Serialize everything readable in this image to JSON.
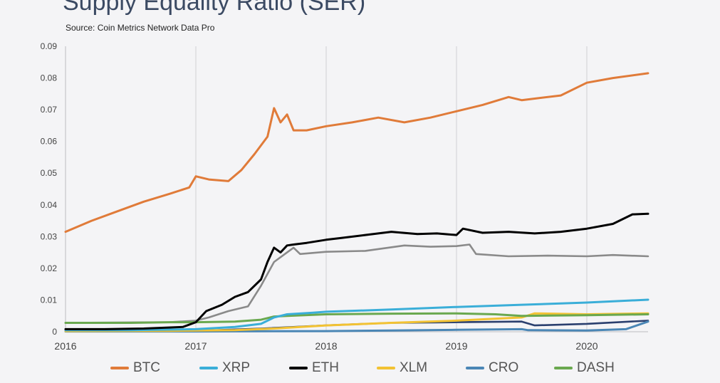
{
  "title": "Supply Equality Ratio (SER)",
  "source": "Source: Coin Metrics Network Data Pro",
  "chart_data": {
    "type": "line",
    "title": "Supply Equality Ratio (SER)",
    "xlabel": "",
    "ylabel": "",
    "xlim": [
      2016.0,
      2020.47
    ],
    "ylim": [
      0,
      0.09
    ],
    "x_ticks": [
      "2016",
      "2017",
      "2018",
      "2019",
      "2020"
    ],
    "y_ticks": [
      "0",
      "0.01",
      "0.02",
      "0.03",
      "0.04",
      "0.05",
      "0.06",
      "0.07",
      "0.08",
      "0.09"
    ],
    "grid": "vertical",
    "legend_position": "bottom",
    "series": [
      {
        "name": "BTC",
        "color": "#e07b39",
        "x": [
          2016.0,
          2016.2,
          2016.4,
          2016.6,
          2016.8,
          2016.95,
          2017.0,
          2017.1,
          2017.25,
          2017.35,
          2017.45,
          2017.55,
          2017.6,
          2017.65,
          2017.7,
          2017.75,
          2017.85,
          2018.0,
          2018.2,
          2018.4,
          2018.6,
          2018.8,
          2019.0,
          2019.2,
          2019.4,
          2019.5,
          2019.6,
          2019.8,
          2020.0,
          2020.2,
          2020.47
        ],
        "y": [
          0.0315,
          0.035,
          0.038,
          0.041,
          0.0435,
          0.0455,
          0.049,
          0.048,
          0.0475,
          0.051,
          0.056,
          0.0615,
          0.0705,
          0.066,
          0.0685,
          0.0635,
          0.0635,
          0.0648,
          0.066,
          0.0675,
          0.066,
          0.0675,
          0.0695,
          0.0715,
          0.074,
          0.073,
          0.0735,
          0.0745,
          0.0785,
          0.08,
          0.0815
        ]
      },
      {
        "name": "XRP",
        "color": "#3aaed8",
        "x": [
          2016.0,
          2016.5,
          2017.0,
          2017.3,
          2017.5,
          2017.6,
          2017.7,
          2017.9,
          2018.0,
          2018.5,
          2019.0,
          2019.5,
          2020.0,
          2020.47
        ],
        "y": [
          0.0005,
          0.0005,
          0.0008,
          0.0015,
          0.0025,
          0.0045,
          0.0055,
          0.006,
          0.0063,
          0.007,
          0.0078,
          0.0085,
          0.0092,
          0.0101
        ]
      },
      {
        "name": "ETH",
        "color": "#000000",
        "x": [
          2016.0,
          2016.3,
          2016.6,
          2016.9,
          2017.0,
          2017.08,
          2017.2,
          2017.3,
          2017.4,
          2017.5,
          2017.55,
          2017.6,
          2017.65,
          2017.7,
          2017.75,
          2017.85,
          2018.0,
          2018.1,
          2018.3,
          2018.5,
          2018.7,
          2018.85,
          2019.0,
          2019.05,
          2019.2,
          2019.4,
          2019.6,
          2019.8,
          2020.0,
          2020.2,
          2020.35,
          2020.47
        ],
        "y": [
          0.0008,
          0.0008,
          0.001,
          0.0015,
          0.003,
          0.0065,
          0.0085,
          0.011,
          0.0125,
          0.0165,
          0.022,
          0.0265,
          0.025,
          0.0272,
          0.0275,
          0.028,
          0.029,
          0.0295,
          0.0305,
          0.0315,
          0.0308,
          0.031,
          0.0305,
          0.0325,
          0.0312,
          0.0315,
          0.031,
          0.0315,
          0.0325,
          0.034,
          0.037,
          0.0372
        ]
      },
      {
        "name": "XLM",
        "color": "#f2c233",
        "x": [
          2016.0,
          2016.8,
          2017.3,
          2017.6,
          2018.0,
          2018.5,
          2019.0,
          2019.5,
          2019.6,
          2020.0,
          2020.47
        ],
        "y": [
          0.0002,
          0.0003,
          0.0005,
          0.001,
          0.002,
          0.0028,
          0.0035,
          0.0045,
          0.0058,
          0.0055,
          0.0058
        ]
      },
      {
        "name": "CRO",
        "color": "#4a86b5",
        "x": [
          2016.0,
          2017.0,
          2018.0,
          2018.5,
          2019.0,
          2019.5,
          2019.55,
          2020.0,
          2020.3,
          2020.47
        ],
        "y": [
          0.0001,
          0.0001,
          0.0002,
          0.0004,
          0.0006,
          0.0008,
          0.0005,
          0.0004,
          0.0008,
          0.0032
        ]
      },
      {
        "name": "DASH",
        "color": "#6aa84f",
        "x": [
          2016.0,
          2016.5,
          2016.8,
          2017.0,
          2017.3,
          2017.5,
          2017.6,
          2017.7,
          2018.0,
          2018.5,
          2019.0,
          2019.3,
          2019.5,
          2020.0,
          2020.47
        ],
        "y": [
          0.0028,
          0.0028,
          0.003,
          0.003,
          0.0032,
          0.0038,
          0.0048,
          0.005,
          0.0055,
          0.0057,
          0.0058,
          0.0055,
          0.005,
          0.0052,
          0.0055
        ]
      }
    ],
    "unlabeled_series": [
      {
        "color": "#8a8a8a",
        "x": [
          2016.0,
          2016.8,
          2017.0,
          2017.1,
          2017.25,
          2017.4,
          2017.5,
          2017.6,
          2017.7,
          2017.75,
          2017.8,
          2018.0,
          2018.3,
          2018.6,
          2018.8,
          2019.0,
          2019.1,
          2019.15,
          2019.4,
          2019.7,
          2020.0,
          2020.2,
          2020.47
        ],
        "y": [
          0.0028,
          0.003,
          0.0035,
          0.0045,
          0.0065,
          0.008,
          0.0145,
          0.022,
          0.025,
          0.0265,
          0.0245,
          0.0252,
          0.0255,
          0.0272,
          0.0268,
          0.027,
          0.0275,
          0.0245,
          0.0238,
          0.024,
          0.0238,
          0.0242,
          0.0238
        ]
      },
      {
        "color": "#2a3f6e",
        "x": [
          2016.0,
          2017.0,
          2017.5,
          2018.0,
          2018.5,
          2019.0,
          2019.5,
          2019.6,
          2020.0,
          2020.47
        ],
        "y": [
          0.0002,
          0.0003,
          0.001,
          0.002,
          0.0028,
          0.003,
          0.0032,
          0.002,
          0.0025,
          0.0035
        ]
      }
    ]
  },
  "legend": [
    {
      "label": "BTC",
      "color": "#e07b39"
    },
    {
      "label": "XRP",
      "color": "#3aaed8"
    },
    {
      "label": "ETH",
      "color": "#000000"
    },
    {
      "label": "XLM",
      "color": "#f2c233"
    },
    {
      "label": "CRO",
      "color": "#4a86b5"
    },
    {
      "label": "DASH",
      "color": "#6aa84f"
    }
  ]
}
